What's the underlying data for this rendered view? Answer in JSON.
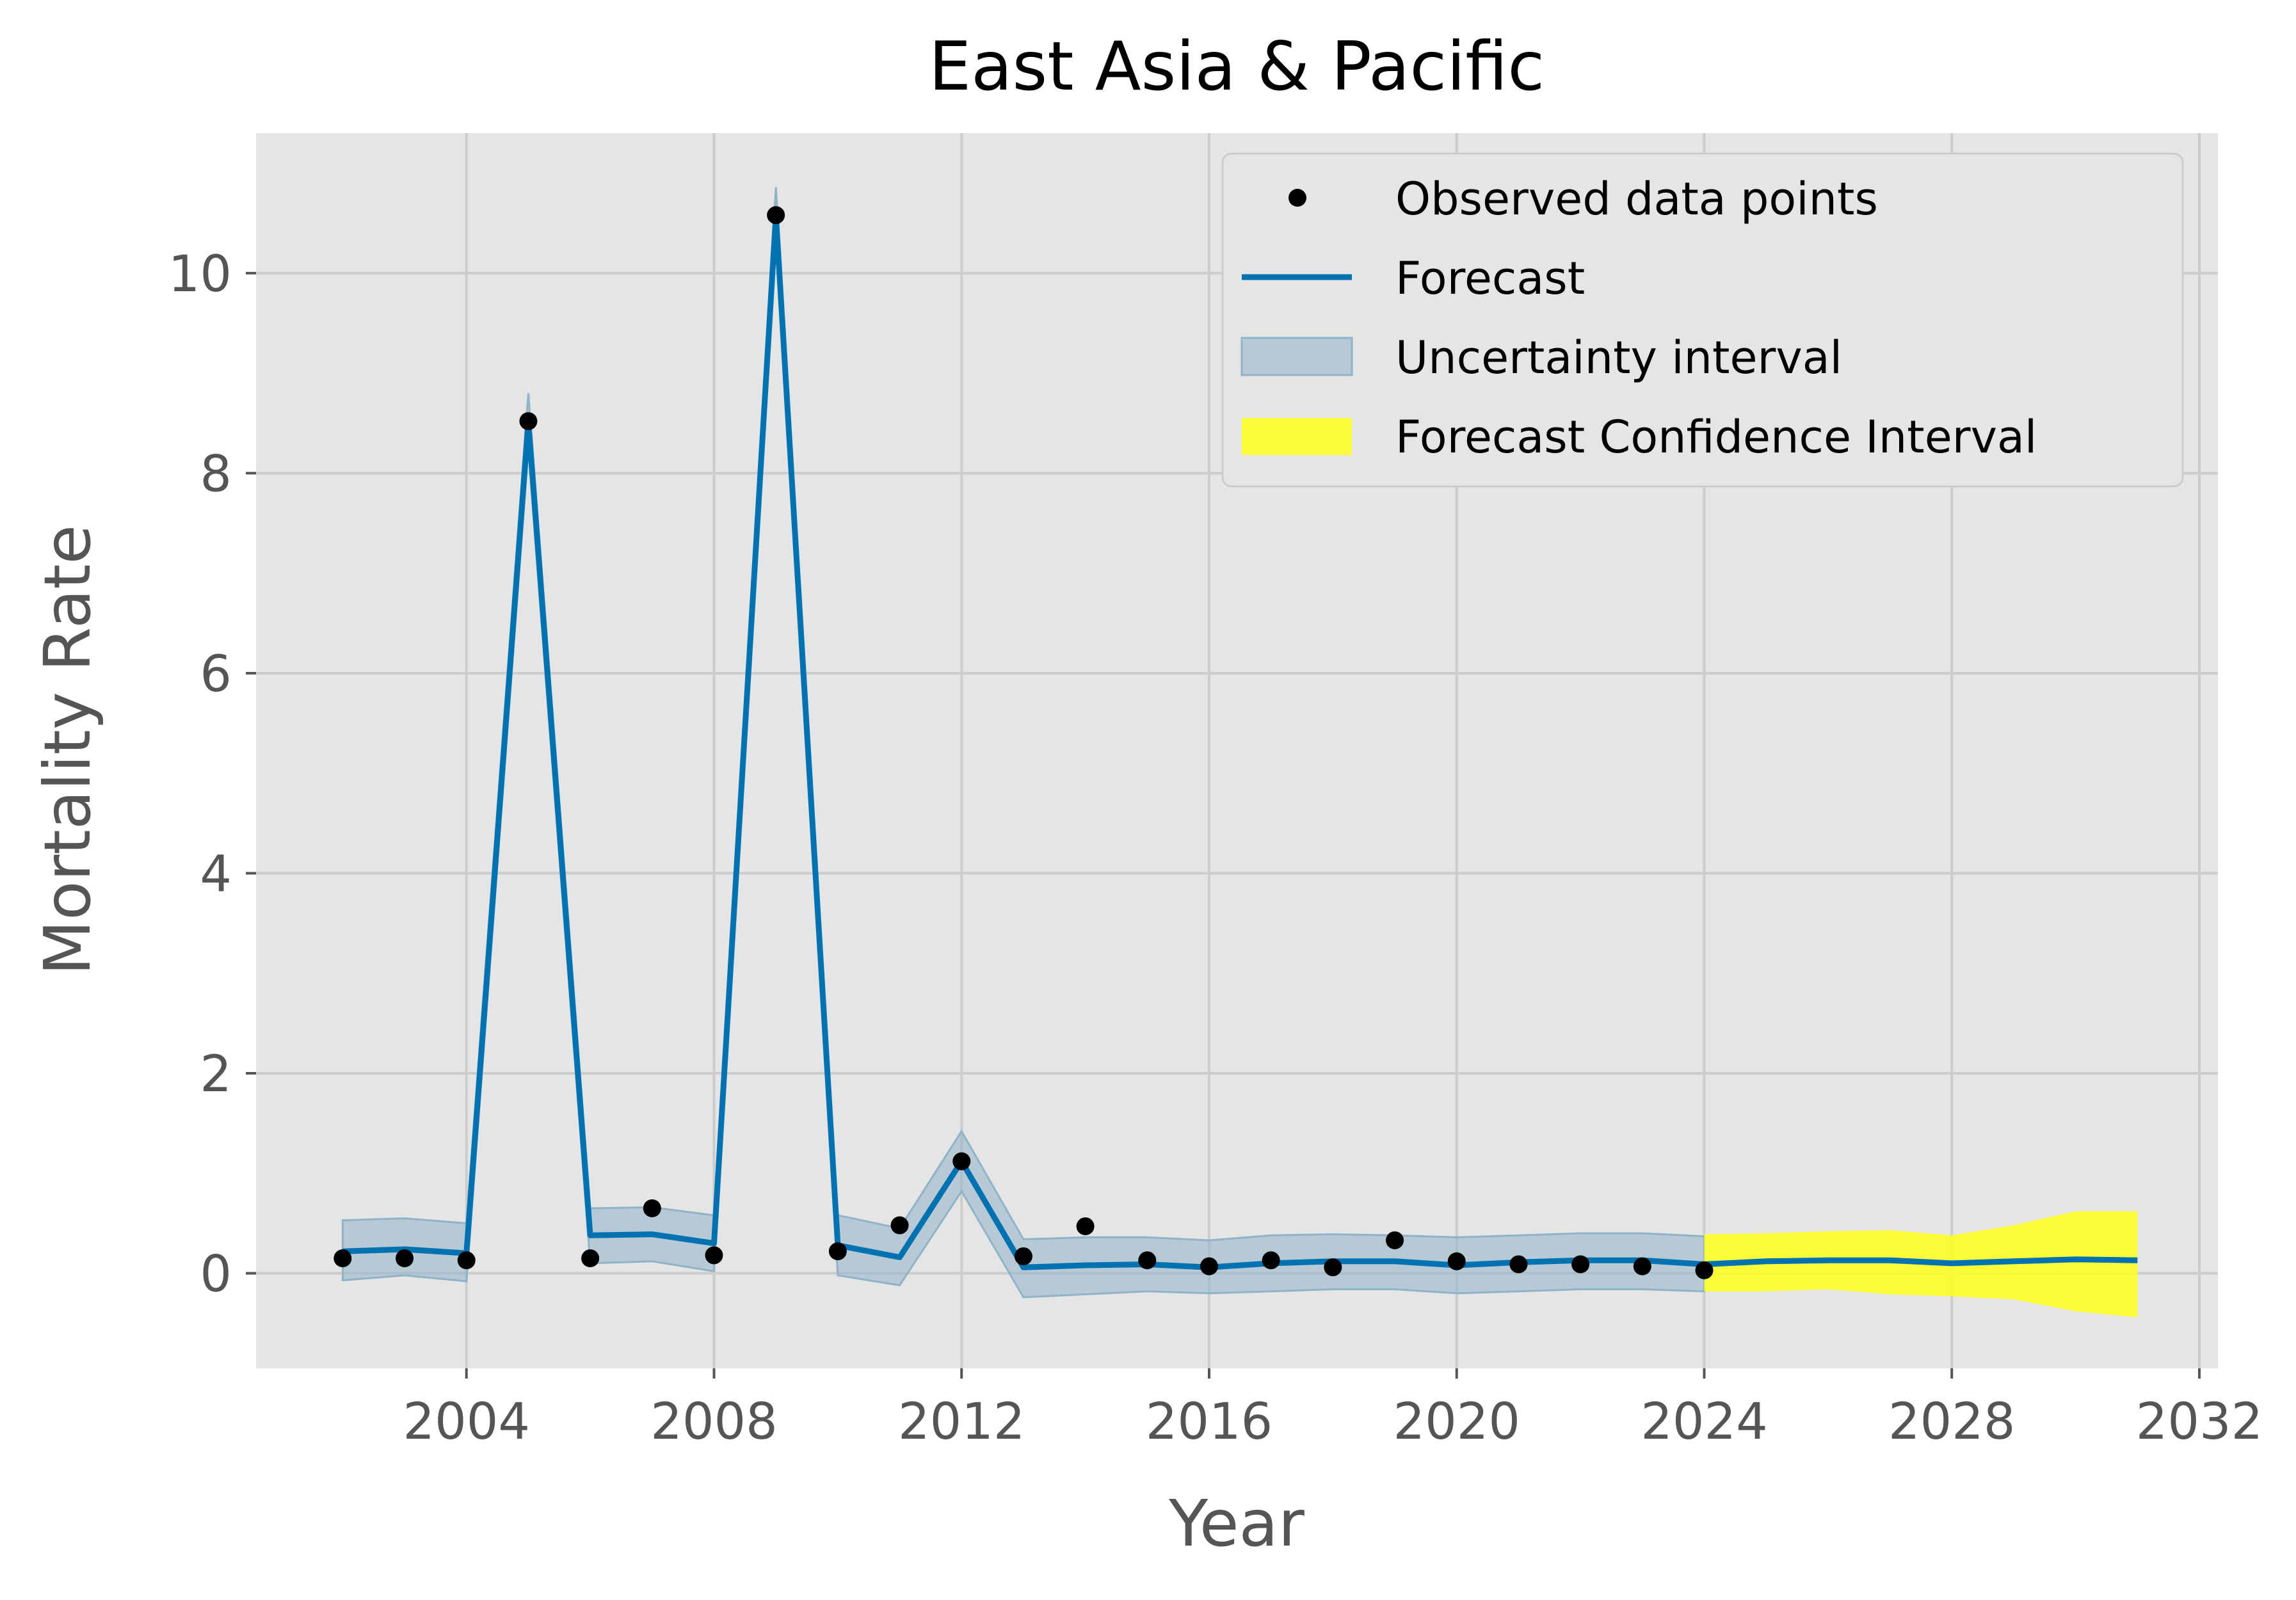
{
  "chart_data": {
    "type": "line",
    "title": "East Asia & Pacific",
    "xlabel": "Year",
    "ylabel": "Mortality Rate",
    "xlim": [
      2000.6,
      2032.3
    ],
    "ylim": [
      -0.95,
      11.4
    ],
    "x_ticks": [
      2004,
      2008,
      2012,
      2016,
      2020,
      2024,
      2028,
      2032
    ],
    "y_ticks": [
      0,
      2,
      4,
      6,
      8,
      10
    ],
    "grid": true,
    "legend_position": "top-right",
    "legend": [
      "Observed data points",
      "Forecast",
      "Uncertainty interval",
      "Forecast Confidence Interval"
    ],
    "colors": {
      "background": "#e5e5e5",
      "grid": "#cccccc",
      "forecast": "#0072b2",
      "uncertainty": "#8fb3c9",
      "confidence": "#ffff1a",
      "points": "#000000"
    },
    "observed": {
      "x": [
        2002,
        2003,
        2004,
        2005,
        2006,
        2007,
        2008,
        2009,
        2010,
        2011,
        2012,
        2013,
        2014,
        2015,
        2016,
        2017,
        2018,
        2019,
        2020,
        2021,
        2022,
        2023,
        2024
      ],
      "y": [
        0.15,
        0.15,
        0.13,
        8.52,
        0.15,
        0.65,
        0.18,
        10.58,
        0.22,
        0.48,
        1.12,
        0.17,
        0.47,
        0.13,
        0.07,
        0.13,
        0.06,
        0.33,
        0.12,
        0.09,
        0.09,
        0.07,
        0.03
      ]
    },
    "forecast": {
      "x": [
        2002,
        2003,
        2004,
        2005,
        2006,
        2007,
        2008,
        2009,
        2010,
        2011,
        2012,
        2013,
        2014,
        2015,
        2016,
        2017,
        2018,
        2019,
        2020,
        2021,
        2022,
        2023,
        2024,
        2025,
        2026,
        2027,
        2028,
        2029,
        2030,
        2031
      ],
      "y": [
        0.22,
        0.24,
        0.2,
        8.52,
        0.38,
        0.39,
        0.3,
        10.58,
        0.28,
        0.16,
        1.12,
        0.06,
        0.08,
        0.09,
        0.06,
        0.1,
        0.12,
        0.12,
        0.08,
        0.11,
        0.13,
        0.13,
        0.09,
        0.12,
        0.13,
        0.13,
        0.1,
        0.12,
        0.14,
        0.13
      ]
    },
    "uncertainty_interval": {
      "x": [
        2002,
        2003,
        2004,
        2005,
        2006,
        2007,
        2008,
        2009,
        2010,
        2011,
        2012,
        2013,
        2014,
        2015,
        2016,
        2017,
        2018,
        2019,
        2020,
        2021,
        2022,
        2023,
        2024
      ],
      "lower": [
        -0.07,
        -0.02,
        -0.08,
        8.24,
        0.1,
        0.12,
        0.02,
        10.3,
        -0.02,
        -0.12,
        0.82,
        -0.24,
        -0.21,
        -0.18,
        -0.2,
        -0.18,
        -0.16,
        -0.16,
        -0.2,
        -0.18,
        -0.16,
        -0.16,
        -0.18
      ],
      "upper": [
        0.53,
        0.55,
        0.5,
        8.8,
        0.65,
        0.66,
        0.58,
        10.86,
        0.58,
        0.45,
        1.42,
        0.34,
        0.36,
        0.36,
        0.33,
        0.38,
        0.39,
        0.38,
        0.36,
        0.38,
        0.4,
        0.4,
        0.37
      ]
    },
    "forecast_confidence_interval": {
      "x": [
        2024,
        2025,
        2026,
        2027,
        2028,
        2029,
        2030,
        2031
      ],
      "lower": [
        -0.18,
        -0.18,
        -0.16,
        -0.21,
        -0.23,
        -0.26,
        -0.38,
        -0.44
      ],
      "upper": [
        0.39,
        0.4,
        0.42,
        0.43,
        0.38,
        0.48,
        0.62,
        0.62
      ]
    }
  }
}
